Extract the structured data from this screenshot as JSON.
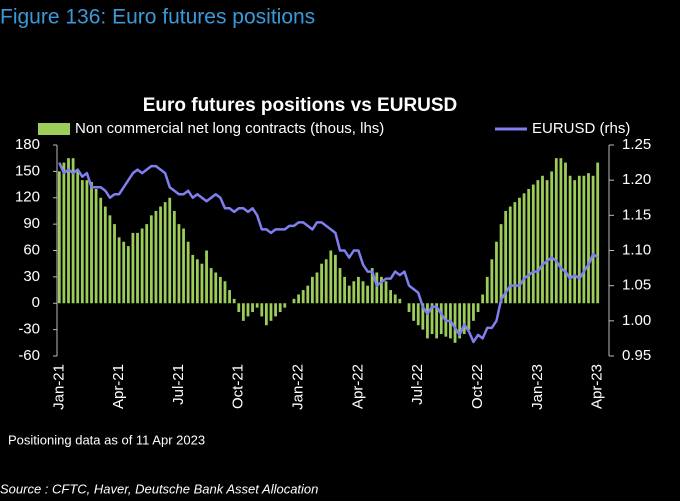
{
  "header": {
    "title": "Figure 136: Euro futures positions"
  },
  "chart_data": {
    "type": "bar",
    "title": "Euro futures positions vs EURUSD",
    "categories": [
      "Jan-21",
      null,
      null,
      null,
      null,
      null,
      null,
      null,
      null,
      null,
      null,
      null,
      null,
      "Apr-21",
      null,
      null,
      null,
      null,
      null,
      null,
      null,
      null,
      null,
      null,
      null,
      null,
      "Jul-21",
      null,
      null,
      null,
      null,
      null,
      null,
      null,
      null,
      null,
      null,
      null,
      null,
      "Oct-21",
      null,
      null,
      null,
      null,
      null,
      null,
      null,
      null,
      null,
      null,
      null,
      null,
      "Jan-22",
      null,
      null,
      null,
      null,
      null,
      null,
      null,
      null,
      null,
      null,
      null,
      null,
      "Apr-22",
      null,
      null,
      null,
      null,
      null,
      null,
      null,
      null,
      null,
      null,
      null,
      null,
      "Jul-22",
      null,
      null,
      null,
      null,
      null,
      null,
      null,
      null,
      null,
      null,
      null,
      null,
      "Oct-22",
      null,
      null,
      null,
      null,
      null,
      null,
      null,
      null,
      null,
      null,
      null,
      null,
      "Jan-23",
      null,
      null,
      null,
      null,
      null,
      null,
      null,
      null,
      null,
      null,
      null,
      null,
      "Apr-23"
    ],
    "series": [
      {
        "name": "Non commercial net long contracts (thous, lhs)",
        "type": "bar",
        "color": "#9ccc5a",
        "values": [
          150,
          160,
          165,
          165,
          150,
          140,
          140,
          138,
          130,
          120,
          110,
          100,
          90,
          75,
          70,
          65,
          80,
          80,
          85,
          90,
          100,
          105,
          110,
          115,
          120,
          105,
          90,
          85,
          70,
          55,
          50,
          45,
          60,
          40,
          35,
          30,
          25,
          15,
          5,
          -10,
          -20,
          -15,
          -10,
          -5,
          -15,
          -25,
          -20,
          -15,
          -10,
          -5,
          0,
          5,
          10,
          15,
          20,
          30,
          35,
          45,
          50,
          60,
          55,
          40,
          30,
          20,
          25,
          30,
          25,
          20,
          40,
          35,
          30,
          25,
          15,
          10,
          5,
          0,
          -10,
          -20,
          -25,
          -30,
          -40,
          -35,
          -40,
          -35,
          -38,
          -40,
          -45,
          -40,
          -35,
          -30,
          -20,
          -10,
          10,
          30,
          50,
          70,
          90,
          105,
          110,
          115,
          120,
          125,
          130,
          135,
          140,
          145,
          140,
          150,
          165,
          165,
          160,
          145,
          140,
          145,
          145,
          148,
          145,
          160
        ]
      },
      {
        "name": "EURUSD (rhs)",
        "type": "line",
        "axis": "y2",
        "color": "#7f7ff0",
        "values": [
          1.225,
          1.21,
          1.215,
          1.21,
          1.215,
          1.205,
          1.21,
          1.19,
          1.19,
          1.19,
          1.185,
          1.175,
          1.18,
          1.18,
          1.19,
          1.2,
          1.21,
          1.215,
          1.21,
          1.215,
          1.22,
          1.22,
          1.215,
          1.21,
          1.19,
          1.185,
          1.18,
          1.18,
          1.185,
          1.175,
          1.18,
          1.175,
          1.17,
          1.175,
          1.18,
          1.175,
          1.16,
          1.16,
          1.155,
          1.16,
          1.16,
          1.155,
          1.16,
          1.15,
          1.13,
          1.13,
          1.125,
          1.13,
          1.13,
          1.13,
          1.135,
          1.135,
          1.14,
          1.14,
          1.135,
          1.13,
          1.14,
          1.14,
          1.135,
          1.13,
          1.125,
          1.1,
          1.1,
          1.09,
          1.1,
          1.1,
          1.08,
          1.07,
          1.07,
          1.05,
          1.055,
          1.06,
          1.06,
          1.07,
          1.065,
          1.07,
          1.05,
          1.045,
          1.04,
          1.02,
          1.01,
          1.02,
          1.02,
          1.01,
          1.0,
          1.0,
          0.99,
          0.98,
          0.995,
          0.985,
          0.97,
          0.98,
          0.975,
          0.99,
          0.99,
          1.0,
          1.03,
          1.04,
          1.05,
          1.05,
          1.05,
          1.06,
          1.065,
          1.07,
          1.07,
          1.08,
          1.085,
          1.09,
          1.085,
          1.075,
          1.07,
          1.06,
          1.065,
          1.06,
          1.07,
          1.08,
          1.095,
          1.09
        ]
      }
    ],
    "ylim": [
      -60,
      180
    ],
    "yticks": [
      -60,
      -30,
      0,
      30,
      60,
      90,
      120,
      150,
      180
    ],
    "y2lim": [
      0.95,
      1.25
    ],
    "y2ticks": [
      {
        "value": 0.95,
        "label": "0.95"
      },
      {
        "value": 1.0,
        "label": "1.00"
      },
      {
        "value": 1.05,
        "label": "1.05"
      },
      {
        "value": 1.1,
        "label": "1.10"
      },
      {
        "value": 1.15,
        "label": "1.15"
      },
      {
        "value": 1.2,
        "label": "1.20"
      },
      {
        "value": 1.25,
        "label": "1.25"
      }
    ],
    "legend": "top"
  },
  "note": "Positioning data as of 11 Apr 2023",
  "source": "Source : CFTC, Haver, Deutsche Bank Asset Allocation"
}
